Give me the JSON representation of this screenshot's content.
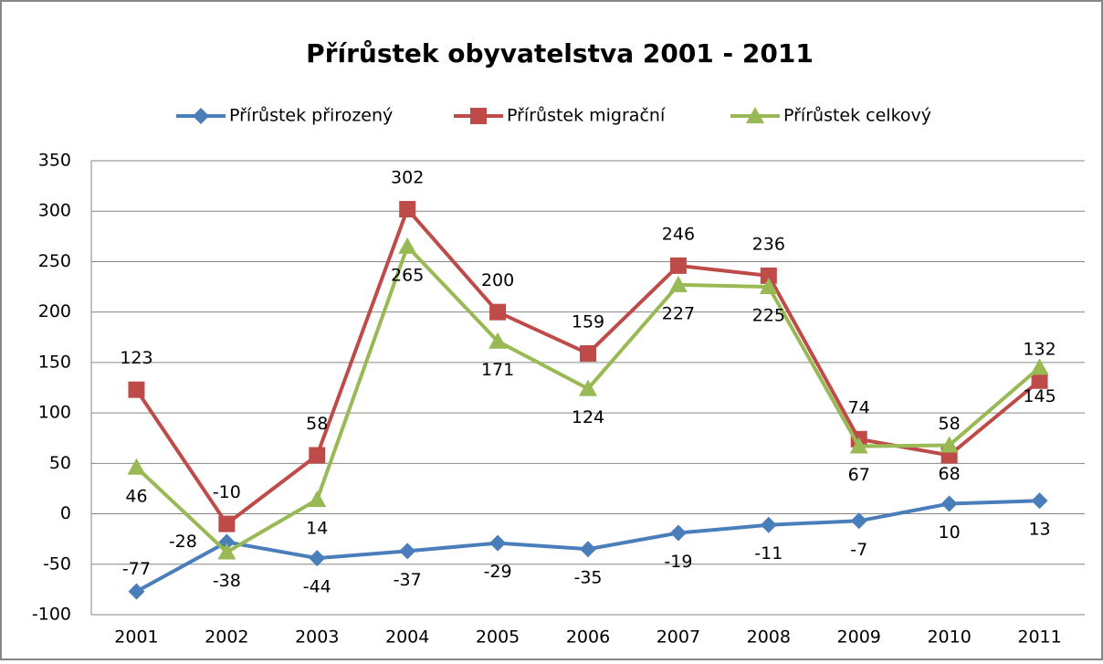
{
  "chart_data": {
    "type": "line",
    "title": "Přírůstek obyvatelstva 2001 - 2011",
    "categories": [
      "2001",
      "2002",
      "2003",
      "2004",
      "2005",
      "2006",
      "2007",
      "2008",
      "2009",
      "2010",
      "2011"
    ],
    "series": [
      {
        "name": "Přírůstek přirozený",
        "color": "#4a7ebb",
        "marker": "diamond",
        "values": [
          -77,
          -28,
          -44,
          -37,
          -29,
          -35,
          -19,
          -11,
          -7,
          10,
          13
        ]
      },
      {
        "name": "Přírůstek migrační",
        "color": "#be4b48",
        "marker": "square",
        "values": [
          123,
          -10,
          58,
          302,
          200,
          159,
          246,
          236,
          74,
          58,
          132
        ]
      },
      {
        "name": "Přírůstek celkový",
        "color": "#98b954",
        "marker": "triangle",
        "values": [
          46,
          -38,
          14,
          265,
          171,
          124,
          227,
          225,
          67,
          68,
          145
        ]
      }
    ],
    "ylim": [
      -100,
      350
    ],
    "yticks": [
      -100,
      -50,
      0,
      50,
      100,
      150,
      200,
      250,
      300,
      350
    ],
    "grid": true,
    "legend": "top",
    "data_labels": true
  }
}
